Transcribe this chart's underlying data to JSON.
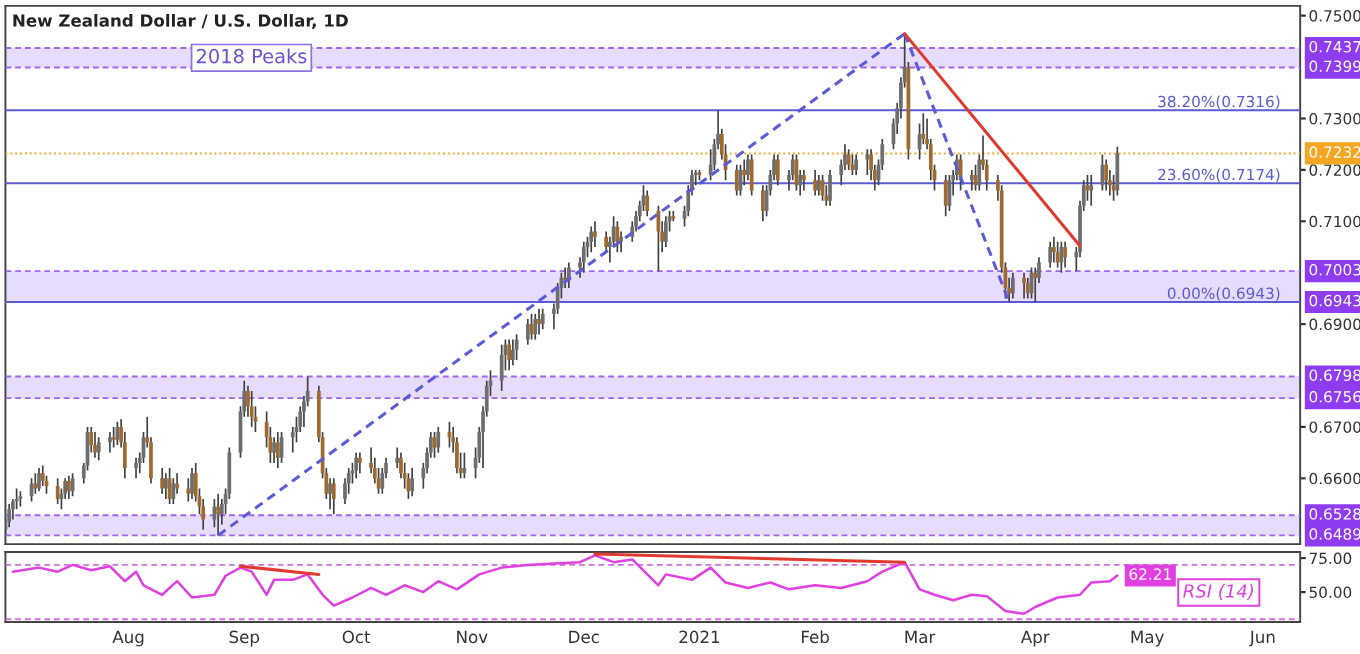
{
  "chart_data": [
    {
      "type": "candlestick",
      "title": "New Zealand Dollar / U.S. Dollar, 1D",
      "x": [
        "2020-06-29",
        "2020-06-30",
        "2020-07-01",
        "2020-07-02",
        "2020-07-03",
        "2020-07-06",
        "2020-07-07",
        "2020-07-08",
        "2020-07-09",
        "2020-07-10",
        "2020-07-13",
        "2020-07-14",
        "2020-07-15",
        "2020-07-16",
        "2020-07-17",
        "2020-07-20",
        "2020-07-21",
        "2020-07-22",
        "2020-07-23",
        "2020-07-24",
        "2020-07-27",
        "2020-07-28",
        "2020-07-29",
        "2020-07-30",
        "2020-07-31",
        "2020-08-03",
        "2020-08-04",
        "2020-08-05",
        "2020-08-06",
        "2020-08-07",
        "2020-08-10",
        "2020-08-11",
        "2020-08-12",
        "2020-08-13",
        "2020-08-14",
        "2020-08-17",
        "2020-08-18",
        "2020-08-19",
        "2020-08-20",
        "2020-08-21",
        "2020-08-24",
        "2020-08-25",
        "2020-08-26",
        "2020-08-27",
        "2020-08-28",
        "2020-08-31",
        "2020-09-01",
        "2020-09-02",
        "2020-09-03",
        "2020-09-04",
        "2020-09-07",
        "2020-09-08",
        "2020-09-09",
        "2020-09-10",
        "2020-09-11",
        "2020-09-14",
        "2020-09-15",
        "2020-09-16",
        "2020-09-17",
        "2020-09-18",
        "2020-09-21",
        "2020-09-22",
        "2020-09-23",
        "2020-09-24",
        "2020-09-25",
        "2020-09-28",
        "2020-09-29",
        "2020-09-30",
        "2020-10-01",
        "2020-10-02",
        "2020-10-05",
        "2020-10-06",
        "2020-10-07",
        "2020-10-08",
        "2020-10-09",
        "2020-10-12",
        "2020-10-13",
        "2020-10-14",
        "2020-10-15",
        "2020-10-16",
        "2020-10-19",
        "2020-10-20",
        "2020-10-21",
        "2020-10-22",
        "2020-10-23",
        "2020-10-26",
        "2020-10-27",
        "2020-10-28",
        "2020-10-29",
        "2020-10-30",
        "2020-11-02",
        "2020-11-03",
        "2020-11-04",
        "2020-11-05",
        "2020-11-06",
        "2020-11-09",
        "2020-11-10",
        "2020-11-11",
        "2020-11-12",
        "2020-11-13",
        "2020-11-16",
        "2020-11-17",
        "2020-11-18",
        "2020-11-19",
        "2020-11-20",
        "2020-11-23",
        "2020-11-24",
        "2020-11-25",
        "2020-11-26",
        "2020-11-27",
        "2020-11-30",
        "2020-12-01",
        "2020-12-02",
        "2020-12-03",
        "2020-12-04",
        "2020-12-07",
        "2020-12-08",
        "2020-12-09",
        "2020-12-10",
        "2020-12-11",
        "2020-12-14",
        "2020-12-15",
        "2020-12-16",
        "2020-12-17",
        "2020-12-18",
        "2020-12-21",
        "2020-12-22",
        "2020-12-23",
        "2020-12-24",
        "2020-12-25",
        "2020-12-28",
        "2020-12-29",
        "2020-12-30",
        "2020-12-31",
        "2021-01-01",
        "2021-01-04",
        "2021-01-05",
        "2021-01-06",
        "2021-01-07",
        "2021-01-08",
        "2021-01-11",
        "2021-01-12",
        "2021-01-13",
        "2021-01-14",
        "2021-01-15",
        "2021-01-18",
        "2021-01-19",
        "2021-01-20",
        "2021-01-21",
        "2021-01-22",
        "2021-01-25",
        "2021-01-26",
        "2021-01-27",
        "2021-01-28",
        "2021-01-29",
        "2021-02-01",
        "2021-02-02",
        "2021-02-03",
        "2021-02-04",
        "2021-02-05",
        "2021-02-08",
        "2021-02-09",
        "2021-02-10",
        "2021-02-11",
        "2021-02-12",
        "2021-02-15",
        "2021-02-16",
        "2021-02-17",
        "2021-02-18",
        "2021-02-19",
        "2021-02-22",
        "2021-02-23",
        "2021-02-24",
        "2021-02-25",
        "2021-02-26",
        "2021-03-01",
        "2021-03-02",
        "2021-03-03",
        "2021-03-04",
        "2021-03-05",
        "2021-03-08",
        "2021-03-09",
        "2021-03-10",
        "2021-03-11",
        "2021-03-12",
        "2021-03-15",
        "2021-03-16",
        "2021-03-17",
        "2021-03-18",
        "2021-03-19",
        "2021-03-22",
        "2021-03-23",
        "2021-03-24",
        "2021-03-25",
        "2021-03-26",
        "2021-03-29",
        "2021-03-30",
        "2021-03-31",
        "2021-04-01",
        "2021-04-02",
        "2021-04-05",
        "2021-04-06",
        "2021-04-07",
        "2021-04-08",
        "2021-04-09",
        "2021-04-12",
        "2021-04-13",
        "2021-04-14",
        "2021-04-15",
        "2021-04-16",
        "2021-04-19",
        "2021-04-20",
        "2021-04-21",
        "2021-04-22",
        "2021-04-23"
      ],
      "ohlc": [
        [
          0.65,
          0.652,
          0.649,
          0.6515
        ],
        [
          0.6515,
          0.655,
          0.6505,
          0.654
        ],
        [
          0.654,
          0.656,
          0.652,
          0.6555
        ],
        [
          0.6555,
          0.658,
          0.654,
          0.656
        ],
        [
          0.656,
          0.6575,
          0.6545,
          0.6565
        ],
        [
          0.6565,
          0.66,
          0.6555,
          0.659
        ],
        [
          0.659,
          0.661,
          0.657,
          0.658
        ],
        [
          0.658,
          0.662,
          0.6575,
          0.661
        ],
        [
          0.661,
          0.6625,
          0.6585,
          0.6595
        ],
        [
          0.6595,
          0.6605,
          0.657,
          0.6585
        ],
        [
          0.6585,
          0.66,
          0.655,
          0.656
        ],
        [
          0.656,
          0.658,
          0.654,
          0.657
        ],
        [
          0.657,
          0.66,
          0.656,
          0.6595
        ],
        [
          0.6595,
          0.6605,
          0.656,
          0.6575
        ],
        [
          0.6575,
          0.661,
          0.6565,
          0.66
        ],
        [
          0.66,
          0.663,
          0.659,
          0.6625
        ],
        [
          0.6625,
          0.67,
          0.6615,
          0.669
        ],
        [
          0.669,
          0.67,
          0.665,
          0.6665
        ],
        [
          0.6665,
          0.669,
          0.664,
          0.665
        ],
        [
          0.665,
          0.668,
          0.6635,
          0.667
        ],
        [
          0.667,
          0.669,
          0.665,
          0.668
        ],
        [
          0.668,
          0.67,
          0.666,
          0.6675
        ],
        [
          0.6675,
          0.671,
          0.6665,
          0.67
        ],
        [
          0.67,
          0.6715,
          0.666,
          0.667
        ],
        [
          0.667,
          0.669,
          0.66,
          0.662
        ],
        [
          0.662,
          0.664,
          0.66,
          0.663
        ],
        [
          0.663,
          0.665,
          0.661,
          0.664
        ],
        [
          0.664,
          0.669,
          0.663,
          0.668
        ],
        [
          0.668,
          0.672,
          0.666,
          0.667
        ],
        [
          0.667,
          0.668,
          0.659,
          0.66
        ],
        [
          0.66,
          0.662,
          0.657,
          0.658
        ],
        [
          0.658,
          0.661,
          0.656,
          0.66
        ],
        [
          0.66,
          0.662,
          0.655,
          0.656
        ],
        [
          0.656,
          0.66,
          0.655,
          0.659
        ],
        [
          0.659,
          0.661,
          0.657,
          0.658
        ],
        [
          0.658,
          0.66,
          0.6555,
          0.657
        ],
        [
          0.657,
          0.662,
          0.656,
          0.661
        ],
        [
          0.661,
          0.663,
          0.6555,
          0.6565
        ],
        [
          0.6565,
          0.658,
          0.653,
          0.6545
        ],
        [
          0.6545,
          0.656,
          0.65,
          0.652
        ],
        [
          0.652,
          0.656,
          0.6505,
          0.6545
        ],
        [
          0.6545,
          0.657,
          0.6489,
          0.653
        ],
        [
          0.653,
          0.656,
          0.651,
          0.655
        ],
        [
          0.655,
          0.658,
          0.653,
          0.657
        ],
        [
          0.657,
          0.666,
          0.656,
          0.665
        ],
        [
          0.665,
          0.674,
          0.664,
          0.673
        ],
        [
          0.673,
          0.679,
          0.672,
          0.677
        ],
        [
          0.677,
          0.678,
          0.672,
          0.674
        ],
        [
          0.674,
          0.677,
          0.67,
          0.672
        ],
        [
          0.672,
          0.674,
          0.669,
          0.671
        ],
        [
          0.671,
          0.673,
          0.666,
          0.668
        ],
        [
          0.668,
          0.67,
          0.663,
          0.665
        ],
        [
          0.665,
          0.668,
          0.663,
          0.667
        ],
        [
          0.667,
          0.669,
          0.662,
          0.664
        ],
        [
          0.664,
          0.669,
          0.663,
          0.668
        ],
        [
          0.668,
          0.67,
          0.665,
          0.669
        ],
        [
          0.669,
          0.672,
          0.667,
          0.67
        ],
        [
          0.67,
          0.674,
          0.669,
          0.673
        ],
        [
          0.673,
          0.676,
          0.67,
          0.675
        ],
        [
          0.675,
          0.6798,
          0.674,
          0.677
        ],
        [
          0.677,
          0.678,
          0.667,
          0.668
        ],
        [
          0.668,
          0.669,
          0.66,
          0.661
        ],
        [
          0.661,
          0.662,
          0.656,
          0.657
        ],
        [
          0.657,
          0.66,
          0.654,
          0.659
        ],
        [
          0.659,
          0.66,
          0.653,
          0.656
        ],
        [
          0.656,
          0.66,
          0.655,
          0.659
        ],
        [
          0.659,
          0.662,
          0.657,
          0.661
        ],
        [
          0.661,
          0.663,
          0.659,
          0.6615
        ],
        [
          0.6615,
          0.665,
          0.66,
          0.664
        ],
        [
          0.664,
          0.665,
          0.661,
          0.663
        ],
        [
          0.663,
          0.666,
          0.661,
          0.662
        ],
        [
          0.662,
          0.664,
          0.659,
          0.66
        ],
        [
          0.66,
          0.662,
          0.657,
          0.658
        ],
        [
          0.658,
          0.662,
          0.657,
          0.661
        ],
        [
          0.661,
          0.664,
          0.66,
          0.663
        ],
        [
          0.663,
          0.666,
          0.662,
          0.664
        ],
        [
          0.664,
          0.665,
          0.66,
          0.661
        ],
        [
          0.661,
          0.663,
          0.658,
          0.66
        ],
        [
          0.66,
          0.661,
          0.656,
          0.6575
        ],
        [
          0.6575,
          0.662,
          0.6565,
          0.66
        ],
        [
          0.66,
          0.663,
          0.658,
          0.662
        ],
        [
          0.662,
          0.666,
          0.661,
          0.665
        ],
        [
          0.665,
          0.669,
          0.664,
          0.668
        ],
        [
          0.668,
          0.669,
          0.664,
          0.666
        ],
        [
          0.666,
          0.67,
          0.665,
          0.669
        ],
        [
          0.669,
          0.671,
          0.666,
          0.668
        ],
        [
          0.668,
          0.67,
          0.665,
          0.667
        ],
        [
          0.667,
          0.668,
          0.661,
          0.662
        ],
        [
          0.662,
          0.665,
          0.66,
          0.661
        ],
        [
          0.661,
          0.665,
          0.66,
          0.662
        ],
        [
          0.662,
          0.666,
          0.66,
          0.664
        ],
        [
          0.664,
          0.67,
          0.663,
          0.669
        ],
        [
          0.669,
          0.674,
          0.662,
          0.673
        ],
        [
          0.673,
          0.679,
          0.672,
          0.678
        ],
        [
          0.678,
          0.681,
          0.676,
          0.679
        ],
        [
          0.679,
          0.686,
          0.677,
          0.684
        ],
        [
          0.684,
          0.687,
          0.681,
          0.686
        ],
        [
          0.686,
          0.687,
          0.681,
          0.683
        ],
        [
          0.683,
          0.687,
          0.682,
          0.685
        ],
        [
          0.685,
          0.688,
          0.683,
          0.687
        ],
        [
          0.687,
          0.691,
          0.686,
          0.69
        ],
        [
          0.69,
          0.692,
          0.687,
          0.688
        ],
        [
          0.688,
          0.692,
          0.687,
          0.691
        ],
        [
          0.691,
          0.693,
          0.688,
          0.69
        ],
        [
          0.69,
          0.693,
          0.689,
          0.692
        ],
        [
          0.692,
          0.694,
          0.689,
          0.693
        ],
        [
          0.693,
          0.698,
          0.692,
          0.697
        ],
        [
          0.697,
          0.7,
          0.695,
          0.699
        ],
        [
          0.699,
          0.701,
          0.697,
          0.6985
        ],
        [
          0.6985,
          0.702,
          0.697,
          0.701
        ],
        [
          0.701,
          0.703,
          0.699,
          0.702
        ],
        [
          0.702,
          0.706,
          0.7,
          0.705
        ],
        [
          0.705,
          0.707,
          0.703,
          0.706
        ],
        [
          0.706,
          0.709,
          0.704,
          0.708
        ],
        [
          0.708,
          0.71,
          0.705,
          0.707
        ],
        [
          0.707,
          0.708,
          0.704,
          0.705
        ],
        [
          0.705,
          0.707,
          0.702,
          0.706
        ],
        [
          0.706,
          0.711,
          0.705,
          0.709
        ],
        [
          0.709,
          0.71,
          0.704,
          0.706
        ],
        [
          0.706,
          0.708,
          0.704,
          0.707
        ],
        [
          0.707,
          0.71,
          0.706,
          0.709
        ],
        [
          0.709,
          0.712,
          0.708,
          0.711
        ],
        [
          0.711,
          0.714,
          0.71,
          0.713
        ],
        [
          0.713,
          0.717,
          0.712,
          0.715
        ],
        [
          0.715,
          0.716,
          0.711,
          0.712
        ],
        [
          0.712,
          0.713,
          0.7003,
          0.708
        ],
        [
          0.708,
          0.71,
          0.704,
          0.706
        ],
        [
          0.706,
          0.711,
          0.705,
          0.71
        ],
        [
          0.71,
          0.712,
          0.708,
          0.711
        ],
        [
          0.711,
          0.712,
          0.71,
          0.7105
        ],
        [
          0.7105,
          0.713,
          0.709,
          0.712
        ],
        [
          0.712,
          0.717,
          0.711,
          0.716
        ],
        [
          0.716,
          0.72,
          0.715,
          0.719
        ],
        [
          0.719,
          0.72,
          0.717,
          0.7195
        ],
        [
          0.7195,
          0.72,
          0.718,
          0.719
        ],
        [
          0.719,
          0.724,
          0.718,
          0.721
        ],
        [
          0.721,
          0.726,
          0.72,
          0.725
        ],
        [
          0.725,
          0.7315,
          0.724,
          0.727
        ],
        [
          0.727,
          0.728,
          0.722,
          0.723
        ],
        [
          0.723,
          0.725,
          0.718,
          0.72
        ],
        [
          0.72,
          0.721,
          0.715,
          0.716
        ],
        [
          0.716,
          0.721,
          0.715,
          0.72
        ],
        [
          0.72,
          0.722,
          0.717,
          0.719
        ],
        [
          0.719,
          0.723,
          0.718,
          0.722
        ],
        [
          0.722,
          0.723,
          0.715,
          0.716
        ],
        [
          0.716,
          0.717,
          0.71,
          0.712
        ],
        [
          0.712,
          0.717,
          0.711,
          0.716
        ],
        [
          0.716,
          0.72,
          0.715,
          0.719
        ],
        [
          0.719,
          0.723,
          0.718,
          0.722
        ],
        [
          0.722,
          0.723,
          0.717,
          0.718
        ],
        [
          0.718,
          0.72,
          0.716,
          0.719
        ],
        [
          0.719,
          0.723,
          0.718,
          0.722
        ],
        [
          0.722,
          0.723,
          0.716,
          0.717
        ],
        [
          0.717,
          0.72,
          0.715,
          0.719
        ],
        [
          0.719,
          0.72,
          0.716,
          0.718
        ],
        [
          0.718,
          0.72,
          0.715,
          0.716
        ],
        [
          0.716,
          0.719,
          0.715,
          0.718
        ],
        [
          0.718,
          0.719,
          0.714,
          0.715
        ],
        [
          0.715,
          0.717,
          0.713,
          0.714
        ],
        [
          0.714,
          0.72,
          0.713,
          0.719
        ],
        [
          0.719,
          0.722,
          0.717,
          0.721
        ],
        [
          0.721,
          0.725,
          0.72,
          0.723
        ],
        [
          0.723,
          0.724,
          0.72,
          0.721
        ],
        [
          0.721,
          0.723,
          0.719,
          0.72
        ],
        [
          0.72,
          0.723,
          0.719,
          0.722
        ],
        [
          0.722,
          0.724,
          0.719,
          0.723
        ],
        [
          0.723,
          0.724,
          0.718,
          0.72
        ],
        [
          0.72,
          0.721,
          0.716,
          0.718
        ],
        [
          0.718,
          0.722,
          0.717,
          0.721
        ],
        [
          0.721,
          0.726,
          0.72,
          0.725
        ],
        [
          0.725,
          0.73,
          0.724,
          0.729
        ],
        [
          0.729,
          0.733,
          0.727,
          0.732
        ],
        [
          0.732,
          0.738,
          0.73,
          0.737
        ],
        [
          0.737,
          0.7465,
          0.736,
          0.74
        ],
        [
          0.74,
          0.741,
          0.722,
          0.724
        ],
        [
          0.724,
          0.729,
          0.722,
          0.727
        ],
        [
          0.727,
          0.731,
          0.725,
          0.726
        ],
        [
          0.726,
          0.73,
          0.724,
          0.725
        ],
        [
          0.725,
          0.726,
          0.718,
          0.72
        ],
        [
          0.72,
          0.721,
          0.716,
          0.718
        ],
        [
          0.718,
          0.719,
          0.711,
          0.713
        ],
        [
          0.713,
          0.719,
          0.712,
          0.718
        ],
        [
          0.718,
          0.72,
          0.715,
          0.719
        ],
        [
          0.719,
          0.723,
          0.718,
          0.722
        ],
        [
          0.722,
          0.723,
          0.716,
          0.718
        ],
        [
          0.718,
          0.72,
          0.716,
          0.719
        ],
        [
          0.719,
          0.721,
          0.716,
          0.717
        ],
        [
          0.717,
          0.723,
          0.716,
          0.722
        ],
        [
          0.722,
          0.7267,
          0.72,
          0.721
        ],
        [
          0.721,
          0.722,
          0.716,
          0.718
        ],
        [
          0.718,
          0.719,
          0.714,
          0.716
        ],
        [
          0.716,
          0.717,
          0.7,
          0.701
        ],
        [
          0.701,
          0.702,
          0.695,
          0.697
        ],
        [
          0.697,
          0.699,
          0.6943,
          0.696
        ],
        [
          0.696,
          0.7,
          0.695,
          0.699
        ],
        [
          0.699,
          0.7,
          0.695,
          0.698
        ],
        [
          0.698,
          0.699,
          0.695,
          0.696
        ],
        [
          0.696,
          0.701,
          0.695,
          0.7
        ],
        [
          0.7,
          0.701,
          0.6943,
          0.699
        ],
        [
          0.699,
          0.703,
          0.698,
          0.702
        ],
        [
          0.702,
          0.706,
          0.701,
          0.705
        ],
        [
          0.705,
          0.707,
          0.702,
          0.704
        ],
        [
          0.704,
          0.706,
          0.701,
          0.702
        ],
        [
          0.702,
          0.706,
          0.7,
          0.705
        ],
        [
          0.705,
          0.706,
          0.701,
          0.703
        ],
        [
          0.703,
          0.705,
          0.7003,
          0.704
        ],
        [
          0.704,
          0.714,
          0.703,
          0.713
        ],
        [
          0.713,
          0.718,
          0.712,
          0.717
        ],
        [
          0.717,
          0.719,
          0.714,
          0.716
        ],
        [
          0.716,
          0.719,
          0.713,
          0.717
        ],
        [
          0.717,
          0.723,
          0.716,
          0.721
        ],
        [
          0.721,
          0.722,
          0.716,
          0.718
        ],
        [
          0.718,
          0.72,
          0.715,
          0.717
        ],
        [
          0.717,
          0.719,
          0.714,
          0.716
        ],
        [
          0.716,
          0.7245,
          0.715,
          0.7232
        ]
      ],
      "series": [
        {
          "type": "line",
          "color": "#5b5bd6",
          "line_style": "dashed",
          "x": [
            "2020-08-25",
            "2021-02-25"
          ],
          "values": [
            0.6489,
            0.7465
          ]
        },
        {
          "type": "line",
          "color": "#5b5bd6",
          "line_style": "dashed",
          "x": [
            "2021-02-25",
            "2021-03-25"
          ],
          "values": [
            0.7465,
            0.6943
          ]
        },
        {
          "type": "line",
          "color": "#e03a2f",
          "line_style": "solid",
          "x": [
            "2021-02-25",
            "2021-04-13"
          ],
          "values": [
            0.7465,
            0.7052
          ]
        }
      ],
      "xlim": [
        "2020-06-29",
        "2021-06-11"
      ],
      "ylim": [
        0.6472,
        0.7519
      ],
      "yticks": [
        {
          "value": 0.66,
          "label": "0.6600"
        },
        {
          "value": 0.67,
          "label": "0.6700"
        },
        {
          "value": 0.69,
          "label": "0.6900"
        },
        {
          "value": 0.71,
          "label": "0.7100"
        },
        {
          "value": 0.72,
          "label": "0.7200"
        },
        {
          "value": 0.73,
          "label": "0.7300"
        },
        {
          "value": 0.75,
          "label": "0.7500"
        }
      ],
      "tick_labels": "y",
      "bands": [
        {
          "axis": "y",
          "from": 0.7399,
          "to": 0.7437,
          "label": "2018 Peaks",
          "color": "#e8dcfc"
        },
        {
          "axis": "y",
          "from": 0.6943,
          "to": 0.7003,
          "color": "#e8dcfc"
        },
        {
          "axis": "y",
          "from": 0.6756,
          "to": 0.6798,
          "color": "#e8dcfc"
        },
        {
          "axis": "y",
          "from": 0.6489,
          "to": 0.6528,
          "color": "#e8dcfc"
        }
      ],
      "ref_lines": [
        {
          "axis": "y",
          "value": 0.7437,
          "label": "0.7437",
          "color": "#a066f0",
          "line_style": "dashed"
        },
        {
          "axis": "y",
          "value": 0.7399,
          "label": "0.7399",
          "color": "#a066f0",
          "line_style": "dashed"
        },
        {
          "axis": "y",
          "value": 0.7232,
          "label": "0.7232",
          "color": "#f5a623",
          "line_style": "dotted"
        },
        {
          "axis": "y",
          "value": 0.7003,
          "label": "0.7003",
          "color": "#a066f0",
          "line_style": "dashed"
        },
        {
          "axis": "y",
          "value": 0.6943,
          "label": "0.6943",
          "color": "#a066f0",
          "line_style": "dashed"
        },
        {
          "axis": "y",
          "value": 0.6798,
          "label": "0.6798",
          "color": "#a066f0",
          "line_style": "dashed"
        },
        {
          "axis": "y",
          "value": 0.6756,
          "label": "0.6756",
          "color": "#a066f0",
          "line_style": "dashed"
        },
        {
          "axis": "y",
          "value": 0.6528,
          "label": "0.6528",
          "color": "#a066f0",
          "line_style": "dashed"
        },
        {
          "axis": "y",
          "value": 0.6489,
          "label": "0.6489",
          "color": "#a066f0",
          "line_style": "dashed"
        },
        {
          "axis": "y",
          "value": 0.7316,
          "label": "38.20%(0.7316)",
          "color": "#5b5bd6",
          "line_style": "solid"
        },
        {
          "axis": "y",
          "value": 0.7174,
          "label": "23.60%(0.7174)",
          "color": "#5b5bd6",
          "line_style": "solid"
        },
        {
          "axis": "y",
          "value": 0.6943,
          "label": "0.00%(0.6943)",
          "color": "#5b5bd6",
          "line_style": "solid"
        }
      ]
    },
    {
      "type": "line",
      "x": [
        "2020-07-01",
        "2020-07-08",
        "2020-07-13",
        "2020-07-17",
        "2020-07-22",
        "2020-07-27",
        "2020-07-31",
        "2020-08-03",
        "2020-08-05",
        "2020-08-10",
        "2020-08-14",
        "2020-08-18",
        "2020-08-24",
        "2020-08-27",
        "2020-08-31",
        "2020-09-03",
        "2020-09-07",
        "2020-09-09",
        "2020-09-14",
        "2020-09-18",
        "2020-09-22",
        "2020-09-25",
        "2020-09-30",
        "2020-10-05",
        "2020-10-09",
        "2020-10-14",
        "2020-10-19",
        "2020-10-23",
        "2020-10-28",
        "2020-11-03",
        "2020-11-09",
        "2020-11-16",
        "2020-11-23",
        "2020-11-30",
        "2020-12-04",
        "2020-12-09",
        "2020-12-14",
        "2020-12-21",
        "2020-12-23",
        "2020-12-30",
        "2021-01-04",
        "2021-01-08",
        "2021-01-14",
        "2021-01-20",
        "2021-01-25",
        "2021-02-01",
        "2021-02-08",
        "2021-02-15",
        "2021-02-19",
        "2021-02-25",
        "2021-03-01",
        "2021-03-05",
        "2021-03-10",
        "2021-03-15",
        "2021-03-19",
        "2021-03-24",
        "2021-03-29",
        "2021-04-01",
        "2021-04-07",
        "2021-04-13",
        "2021-04-16",
        "2021-04-21",
        "2021-04-23"
      ],
      "series": [
        {
          "name": "RSI (14)",
          "color": "#e040e0",
          "values": [
            65,
            68,
            65,
            70,
            66,
            69,
            58,
            65,
            55,
            48,
            58,
            46,
            48,
            62,
            68,
            65,
            48,
            59,
            59,
            63,
            48,
            40,
            46,
            53,
            48,
            55,
            50,
            58,
            52,
            63,
            68,
            70,
            71,
            72,
            77,
            72,
            74,
            55,
            63,
            59,
            68,
            57,
            53,
            57,
            52,
            55,
            53,
            58,
            65,
            72,
            52,
            48,
            44,
            48,
            47,
            36,
            34,
            39,
            46,
            48,
            57,
            58,
            62.21
          ],
          "value_labels": [
            null,
            null,
            null,
            null,
            null,
            null,
            null,
            null,
            null,
            null,
            null,
            null,
            null,
            null,
            null,
            null,
            null,
            null,
            null,
            null,
            null,
            null,
            null,
            null,
            null,
            null,
            null,
            null,
            null,
            null,
            null,
            null,
            null,
            null,
            null,
            null,
            null,
            null,
            null,
            null,
            null,
            null,
            null,
            null,
            null,
            null,
            null,
            null,
            null,
            null,
            null,
            null,
            null,
            null,
            null,
            null,
            null,
            null,
            null,
            null,
            null,
            null,
            "62.21"
          ]
        },
        {
          "color": "#e03a2f",
          "x": [
            "2020-08-31",
            "2020-09-21"
          ],
          "values": [
            69,
            63
          ]
        },
        {
          "color": "#e03a2f",
          "x": [
            "2020-12-04",
            "2021-02-25"
          ],
          "values": [
            78,
            72
          ]
        }
      ],
      "xlim": [
        "2020-06-29",
        "2021-06-11"
      ],
      "xticks": [
        {
          "value": "2020-08-01",
          "label": "Aug"
        },
        {
          "value": "2020-09-01",
          "label": "Sep"
        },
        {
          "value": "2020-10-01",
          "label": "Oct"
        },
        {
          "value": "2020-11-01",
          "label": "Nov"
        },
        {
          "value": "2020-12-01",
          "label": "Dec"
        },
        {
          "value": "2021-01-01",
          "label": "2021"
        },
        {
          "value": "2021-02-01",
          "label": "Feb"
        },
        {
          "value": "2021-03-01",
          "label": "Mar"
        },
        {
          "value": "2021-04-01",
          "label": "Apr"
        },
        {
          "value": "2021-05-01",
          "label": "May"
        },
        {
          "value": "2021-06-01",
          "label": "Jun"
        }
      ],
      "ylim": [
        28,
        79.5
      ],
      "yticks": [
        {
          "value": 75,
          "label": "75.00"
        },
        {
          "value": 50,
          "label": "50.00"
        }
      ],
      "ref_lines": [
        {
          "axis": "y",
          "value": 70,
          "color": "#d070e0",
          "line_style": "dashed"
        },
        {
          "axis": "y",
          "value": 30,
          "color": "#d070e0",
          "line_style": "dashed"
        }
      ]
    }
  ]
}
